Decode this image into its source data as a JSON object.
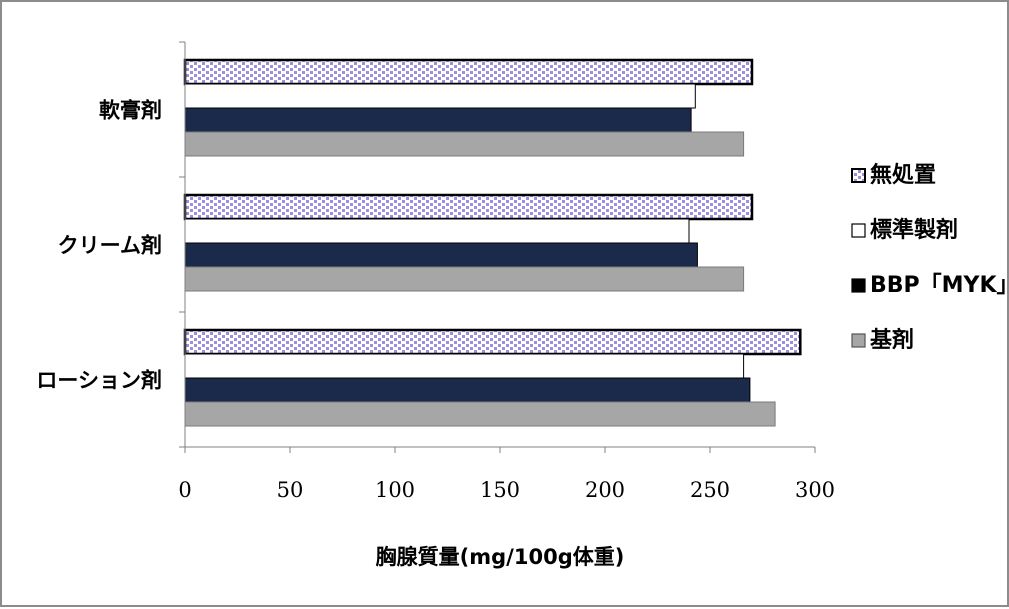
{
  "chart_data": {
    "type": "bar",
    "orientation": "horizontal",
    "categories": [
      "軟膏剤",
      "クリーム剤",
      "ローション剤"
    ],
    "series": [
      {
        "name": "無処置",
        "values": [
          270,
          270,
          293
        ],
        "color": "#ffffff",
        "pattern": "dotted-lavender"
      },
      {
        "name": "標準製剤",
        "values": [
          243,
          240,
          266
        ],
        "color": "#ffffff",
        "pattern": "none"
      },
      {
        "name": "BBP「MYK」",
        "values": [
          241,
          244,
          269
        ],
        "color": "#1b2a4a",
        "pattern": "none"
      },
      {
        "name": "基剤",
        "values": [
          266,
          266,
          281
        ],
        "color": "#a6a6a6",
        "pattern": "none"
      }
    ],
    "xlabel": "胸腺質量(mg/100g体重)",
    "xlim": [
      0,
      300
    ],
    "xticks": [
      "0",
      "50",
      "100",
      "150",
      "200",
      "250",
      "300"
    ],
    "legend_position": "right",
    "grid": false
  }
}
